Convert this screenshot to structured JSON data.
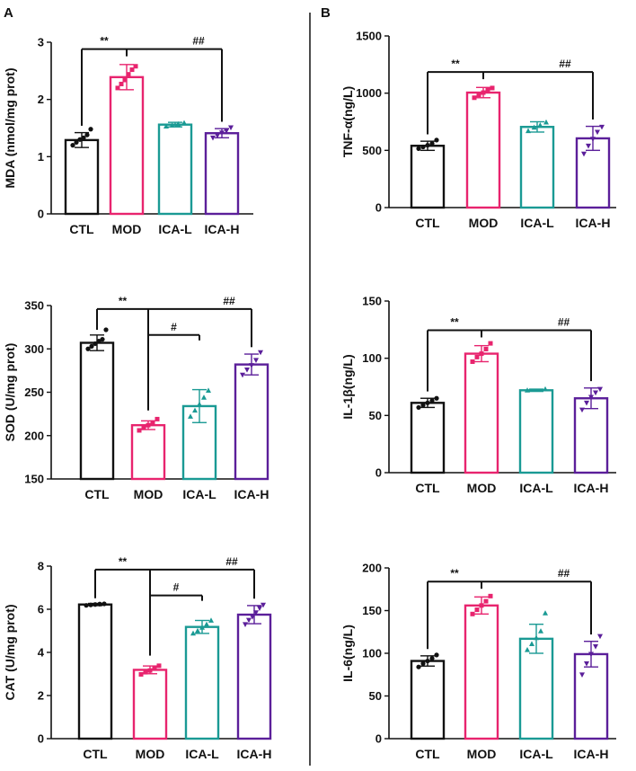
{
  "panel_labels": [
    "A",
    "B"
  ],
  "colors": {
    "CTL": "#111111",
    "MOD": "#e8246e",
    "ICA-L": "#1a9a94",
    "ICA-H": "#5b1f9a",
    "axis": "#111111"
  },
  "chart_data": [
    {
      "type": "bar",
      "panel": "A",
      "ylabel": "MDA (nmol/mg prot)",
      "categories": [
        "CTL",
        "MOD",
        "ICA-L",
        "ICA-H"
      ],
      "values": [
        1.29,
        2.39,
        1.56,
        1.41
      ],
      "errors": [
        0.13,
        0.22,
        0.04,
        0.08
      ],
      "points": [
        [
          1.2,
          1.25,
          1.3,
          1.33,
          1.38,
          1.48
        ],
        [
          2.2,
          2.27,
          2.34,
          2.44,
          2.52,
          2.58
        ],
        [
          1.53,
          1.55,
          1.57,
          1.59
        ],
        [
          1.33,
          1.37,
          1.42,
          1.45,
          1.51
        ]
      ],
      "ylim": [
        0,
        3
      ],
      "yticks": [
        0,
        1,
        2,
        3
      ],
      "ytick_labels": [
        "0",
        "1",
        "2",
        "3"
      ],
      "significance": [
        {
          "label": "**",
          "from": "CTL",
          "to": [
            "MOD"
          ]
        },
        {
          "label": "##",
          "from": "MOD",
          "to": [
            "ICA-H"
          ]
        }
      ]
    },
    {
      "type": "bar",
      "panel": "A",
      "ylabel": "SOD (U/mg prot)",
      "categories": [
        "CTL",
        "MOD",
        "ICA-L",
        "ICA-H"
      ],
      "values": [
        307,
        212,
        234,
        282
      ],
      "errors": [
        9,
        5,
        19,
        12
      ],
      "points": [
        [
          300,
          303,
          306,
          309,
          311,
          322
        ],
        [
          206,
          209,
          212,
          215,
          219
        ],
        [
          222,
          229,
          236,
          244,
          252
        ],
        [
          270,
          276,
          281,
          287,
          296
        ]
      ],
      "ylim": [
        150,
        350
      ],
      "yticks": [
        150,
        200,
        250,
        300,
        350
      ],
      "ytick_labels": [
        "150",
        "200",
        "250",
        "300",
        "350"
      ],
      "significance": [
        {
          "label": "**",
          "from": "CTL",
          "to": [
            "MOD",
            "ICA-H"
          ]
        },
        {
          "label": "#",
          "from": "MOD",
          "to": [
            "ICA-L"
          ]
        },
        {
          "label": "##",
          "from": "MOD",
          "to": [
            "ICA-H"
          ]
        }
      ]
    },
    {
      "type": "bar",
      "panel": "A",
      "ylabel": "CAT (U/mg prot)",
      "categories": [
        "CTL",
        "MOD",
        "ICA-L",
        "ICA-H"
      ],
      "values": [
        6.22,
        3.19,
        5.18,
        5.75
      ],
      "errors": [
        0.05,
        0.18,
        0.3,
        0.42
      ],
      "points": [
        [
          6.18,
          6.2,
          6.22,
          6.24,
          6.25
        ],
        [
          2.98,
          3.08,
          3.16,
          3.25,
          3.38
        ],
        [
          4.88,
          5.0,
          5.15,
          5.3,
          5.48
        ],
        [
          5.3,
          5.5,
          5.65,
          5.85,
          6.05,
          6.2
        ]
      ],
      "ylim": [
        0,
        8
      ],
      "yticks": [
        0,
        2,
        4,
        6,
        8
      ],
      "ytick_labels": [
        "0",
        "2",
        "4",
        "6",
        "8"
      ],
      "significance": [
        {
          "label": "**",
          "from": "CTL",
          "to": [
            "MOD",
            "ICA-H"
          ]
        },
        {
          "label": "#",
          "from": "MOD",
          "to": [
            "ICA-L"
          ]
        },
        {
          "label": "##",
          "from": "MOD",
          "to": [
            "ICA-H"
          ]
        }
      ]
    },
    {
      "type": "bar",
      "panel": "B",
      "ylabel": "TNF-α(ng/L)",
      "categories": [
        "CTL",
        "MOD",
        "ICA-L",
        "ICA-H"
      ],
      "values": [
        540,
        1005,
        705,
        605
      ],
      "errors": [
        40,
        45,
        45,
        105
      ],
      "points": [
        [
          515,
          530,
          545,
          560,
          590
        ],
        [
          960,
          985,
          1005,
          1025,
          1045
        ],
        [
          670,
          700,
          720,
          745
        ],
        [
          470,
          540,
          600,
          660,
          705
        ]
      ],
      "ylim": [
        0,
        1500
      ],
      "yticks": [
        0,
        500,
        1000,
        1500
      ],
      "ytick_labels": [
        "0",
        "500",
        "1000",
        "1500"
      ],
      "significance": [
        {
          "label": "**",
          "from": "CTL",
          "to": [
            "MOD"
          ]
        },
        {
          "label": "##",
          "from": "MOD",
          "to": [
            "ICA-H"
          ]
        }
      ]
    },
    {
      "type": "bar",
      "panel": "B",
      "ylabel": "IL-1β(ng/L)",
      "categories": [
        "CTL",
        "MOD",
        "ICA-L",
        "ICA-H"
      ],
      "values": [
        61,
        104,
        72,
        65
      ],
      "errors": [
        4,
        7,
        1,
        9
      ],
      "points": [
        [
          57,
          59,
          61,
          63,
          65
        ],
        [
          97,
          101,
          104,
          108,
          113
        ],
        [
          72,
          73
        ],
        [
          55,
          61,
          66,
          70,
          73
        ]
      ],
      "ylim": [
        0,
        150
      ],
      "yticks": [
        0,
        50,
        100,
        150
      ],
      "ytick_labels": [
        "0",
        "50",
        "100",
        "150"
      ],
      "significance": [
        {
          "label": "**",
          "from": "CTL",
          "to": [
            "MOD"
          ]
        },
        {
          "label": "##",
          "from": "MOD",
          "to": [
            "ICA-H"
          ]
        }
      ]
    },
    {
      "type": "bar",
      "panel": "B",
      "ylabel": "IL-6(ng/L)",
      "categories": [
        "CTL",
        "MOD",
        "ICA-L",
        "ICA-H"
      ],
      "values": [
        91,
        156,
        117,
        99
      ],
      "errors": [
        6,
        10,
        17,
        15
      ],
      "points": [
        [
          84,
          88,
          91,
          94,
          98
        ],
        [
          146,
          151,
          156,
          161,
          167
        ],
        [
          104,
          111,
          118,
          126,
          147
        ],
        [
          75,
          88,
          99,
          108,
          120
        ]
      ],
      "ylim": [
        0,
        200
      ],
      "yticks": [
        0,
        50,
        100,
        150,
        200
      ],
      "ytick_labels": [
        "0",
        "50",
        "100",
        "150",
        "200"
      ],
      "significance": [
        {
          "label": "**",
          "from": "CTL",
          "to": [
            "MOD"
          ]
        },
        {
          "label": "##",
          "from": "MOD",
          "to": [
            "ICA-H"
          ]
        }
      ]
    }
  ]
}
